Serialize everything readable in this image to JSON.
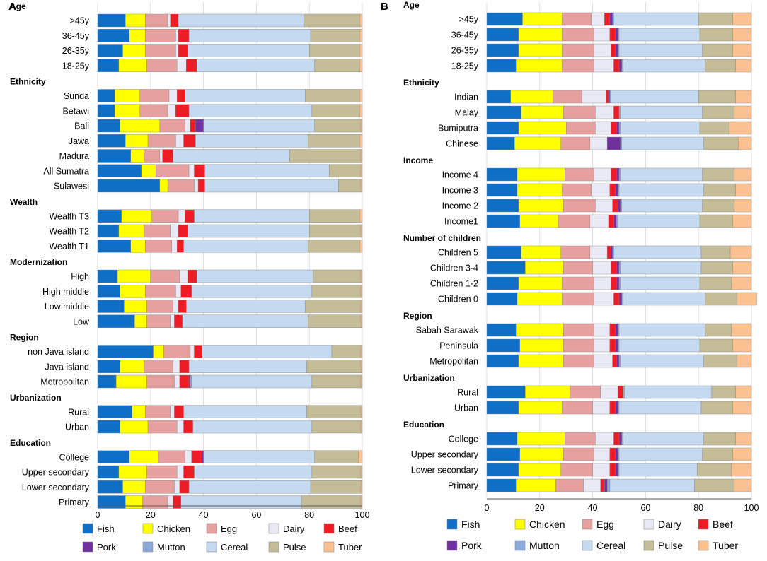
{
  "categories_order": [
    "Fish",
    "Chicken",
    "Egg",
    "Dairy",
    "Beef",
    "Pork",
    "Mutton",
    "Cereal",
    "Pulse",
    "Tuber"
  ],
  "colors": {
    "Fish": "#0f6fc6",
    "Chicken": "#ffff00",
    "Egg": "#e6a0a0",
    "Dairy": "#e9e9f5",
    "Beef": "#ee1c25",
    "Pork": "#7030a0",
    "Mutton": "#8eaadb",
    "Cereal": "#c5d9f1",
    "Pulse": "#c4bd97",
    "Tuber": "#fac090"
  },
  "chart_data": [
    {
      "type": "bar",
      "orientation": "horizontal",
      "stacked": true,
      "panel_label": "A",
      "xlim": [
        0,
        100
      ],
      "xticks": [
        "0",
        "20",
        "40",
        "60",
        "80",
        "100"
      ],
      "series_names": [
        "Fish",
        "Chicken",
        "Egg",
        "Dairy",
        "Beef",
        "Pork",
        "Mutton",
        "Cereal",
        "Pulse",
        "Tuber"
      ],
      "legend_row1": [
        "Fish",
        "Chicken",
        "Egg",
        "Dairy",
        "Beef"
      ],
      "legend_row2": [
        "Pork",
        "Mutton",
        "Cereal",
        "Pulse",
        "Tuber"
      ],
      "groups": [
        {
          "title": "Age",
          "rows": [
            {
              "label": ">45y",
              "values": [
                10.5,
                7.5,
                8.5,
                1,
                3,
                0,
                0,
                47.5,
                21,
                1
              ]
            },
            {
              "label": "36-45y",
              "values": [
                12,
                6,
                11.5,
                1,
                4,
                0,
                0,
                46,
                18.5,
                1
              ]
            },
            {
              "label": "26-35y",
              "values": [
                9.5,
                8.5,
                11.5,
                1,
                3.5,
                0,
                0,
                46,
                19,
                1
              ]
            },
            {
              "label": "18-25y",
              "values": [
                8,
                10.5,
                11.5,
                3.5,
                4,
                0,
                0,
                44.5,
                17,
                1
              ]
            }
          ]
        },
        {
          "title": "Ethnicity",
          "rows": [
            {
              "label": "Sunda",
              "values": [
                6.5,
                9.5,
                11,
                3,
                3,
                0,
                0,
                45.5,
                20.5,
                1
              ]
            },
            {
              "label": "Betawi",
              "values": [
                6.5,
                9.5,
                10.5,
                3,
                5,
                0,
                0,
                46.5,
                18,
                1
              ]
            },
            {
              "label": "Bali",
              "values": [
                8.5,
                15,
                9.5,
                2,
                2,
                3,
                0,
                42,
                17.5,
                0.5
              ]
            },
            {
              "label": "Jawa",
              "values": [
                10.5,
                8.5,
                10.5,
                3,
                4.5,
                0,
                0,
                42.5,
                19.5,
                1
              ]
            },
            {
              "label": "Madura",
              "values": [
                12.5,
                5,
                6,
                1,
                4,
                0,
                0,
                44,
                27,
                0.5
              ]
            },
            {
              "label": "All Sumatra",
              "values": [
                16.5,
                5.5,
                12.5,
                2,
                4,
                0,
                0,
                47,
                12,
                0.5
              ]
            },
            {
              "label": "Sulawesi",
              "values": [
                23.5,
                3,
                10,
                1.5,
                2.5,
                0,
                0,
                50.5,
                8.5,
                0.5
              ]
            }
          ]
        },
        {
          "title": "Wealth",
          "rows": [
            {
              "label": "Wealth T3",
              "values": [
                9,
                11.5,
                10,
                2.5,
                3.5,
                0,
                0,
                43.5,
                19,
                1
              ]
            },
            {
              "label": "Wealth T2",
              "values": [
                8,
                9.5,
                10,
                3,
                3.5,
                0,
                0,
                46,
                19.5,
                0.5
              ]
            },
            {
              "label": "Wealth T1",
              "values": [
                12.5,
                5.5,
                10,
                2,
                2.5,
                0,
                0,
                47,
                19.5,
                1
              ]
            }
          ]
        },
        {
          "title": "Modernization",
          "rows": [
            {
              "label": "High",
              "values": [
                7.5,
                12.5,
                11,
                3,
                3.5,
                0,
                0,
                44,
                18,
                0.5
              ]
            },
            {
              "label": "High middle",
              "values": [
                8.5,
                9.5,
                11.5,
                2,
                4,
                0,
                0,
                45.5,
                18.5,
                0.5
              ]
            },
            {
              "label": "Low middle",
              "values": [
                10,
                8.5,
                10,
                2,
                3,
                0,
                0,
                45,
                21,
                0.5
              ]
            },
            {
              "label": "Low",
              "values": [
                14,
                4.5,
                9,
                1.5,
                3,
                0,
                0,
                47.5,
                20,
                0.5
              ]
            }
          ]
        },
        {
          "title": "Region",
          "rows": [
            {
              "label": "non Java island",
              "values": [
                21,
                4,
                10,
                1.5,
                3,
                0,
                0,
                49,
                11,
                0.5
              ]
            },
            {
              "label": "Java island",
              "values": [
                8.5,
                9,
                11,
                2.5,
                3.5,
                0,
                0,
                44.5,
                20.5,
                0.5
              ]
            },
            {
              "label": "Metropolitan",
              "values": [
                7,
                11.5,
                10.5,
                2,
                3.5,
                0.5,
                0.5,
                45.5,
                18.5,
                0.5
              ]
            }
          ]
        },
        {
          "title": "Urbanization",
          "rows": [
            {
              "label": "Rural",
              "values": [
                13,
                5,
                9.5,
                1.5,
                3.5,
                0,
                0,
                46.5,
                20.5,
                0.5
              ]
            },
            {
              "label": "Urban",
              "values": [
                8.5,
                10.5,
                11,
                2.5,
                3.5,
                0,
                0,
                45,
                18.5,
                0.5
              ]
            }
          ]
        },
        {
          "title": "Education",
          "rows": [
            {
              "label": "College",
              "values": [
                12,
                11,
                10,
                2.5,
                4,
                0.5,
                0,
                42,
                16.5,
                1.5
              ]
            },
            {
              "label": "Upper secondary",
              "values": [
                8,
                10.5,
                11.5,
                2.5,
                4,
                0,
                0,
                44.5,
                18.5,
                0.5
              ]
            },
            {
              "label": "Lower secondary",
              "values": [
                9.5,
                8.5,
                11,
                2,
                3.5,
                0,
                0,
                46,
                19,
                0.5
              ]
            },
            {
              "label": "Primary",
              "values": [
                10.5,
                6.5,
                9.5,
                2,
                3,
                0,
                0,
                45.5,
                22.5,
                0.5
              ]
            }
          ]
        }
      ]
    },
    {
      "type": "bar",
      "orientation": "horizontal",
      "stacked": true,
      "panel_label": "B",
      "xlim": [
        0,
        100
      ],
      "xticks": [
        "0",
        "20",
        "40",
        "60",
        "80",
        "100"
      ],
      "series_names": [
        "Fish",
        "Chicken",
        "Egg",
        "Dairy",
        "Beef",
        "Pork",
        "Mutton",
        "Cereal",
        "Pulse",
        "Tuber"
      ],
      "legend_row1": [
        "Fish",
        "Chicken",
        "Egg",
        "Dairy",
        "Beef"
      ],
      "legend_row2": [
        "Pork",
        "Mutton",
        "Cereal",
        "Pulse",
        "Tuber"
      ],
      "groups": [
        {
          "title": "Age",
          "rows": [
            {
              "label": ">45y",
              "values": [
                13.5,
                15,
                11,
                5,
                2,
                1,
                0.5,
                32,
                13,
                7
              ]
            },
            {
              "label": "36-45y",
              "values": [
                12,
                16.5,
                12,
                6,
                2,
                1,
                0.5,
                30.5,
                12.5,
                7
              ]
            },
            {
              "label": "26-35y",
              "values": [
                12,
                16.5,
                12,
                6.5,
                1.5,
                1,
                0.5,
                31.5,
                11.5,
                7
              ]
            },
            {
              "label": "18-25y",
              "values": [
                11,
                17.5,
                12,
                7.5,
                2,
                1,
                0.5,
                31,
                11.5,
                6
              ]
            }
          ]
        },
        {
          "title": "Ethnicity",
          "rows": [
            {
              "label": "Indian",
              "values": [
                9,
                16,
                11,
                9,
                1,
                0.5,
                0.5,
                33,
                14,
                6
              ]
            },
            {
              "label": "Malay",
              "values": [
                13,
                16,
                12,
                7,
                2,
                0,
                0.5,
                31,
                12,
                6.5
              ]
            },
            {
              "label": "Bumiputra",
              "values": [
                12,
                18,
                11,
                6,
                2,
                1,
                0.5,
                30,
                11,
                8.5
              ]
            },
            {
              "label": "Chinese",
              "values": [
                10.5,
                17.5,
                11,
                6.5,
                0,
                5,
                0.5,
                31,
                13,
                5
              ]
            }
          ]
        },
        {
          "title": "Income",
          "rows": [
            {
              "label": "Income 4",
              "values": [
                11.5,
                18,
                11,
                6.5,
                2,
                1,
                0.5,
                31,
                12,
                6.5
              ]
            },
            {
              "label": "Income 3",
              "values": [
                11.5,
                17,
                11,
                7,
                2,
                1,
                0.5,
                32,
                12,
                6
              ]
            },
            {
              "label": "Income 2",
              "values": [
                12,
                17,
                12,
                6.5,
                2,
                1,
                0.5,
                30.5,
                12,
                6.5
              ]
            },
            {
              "label": "Income1",
              "values": [
                12.5,
                14.5,
                12,
                7,
                2,
                1,
                0.5,
                31,
                12.5,
                7
              ]
            }
          ]
        },
        {
          "title": "Number of children",
          "rows": [
            {
              "label": "Children 5",
              "values": [
                13,
                15,
                11,
                6.5,
                1.5,
                0.5,
                0.5,
                33,
                11,
                8
              ]
            },
            {
              "label": "Children 3-4",
              "values": [
                14.5,
                14.5,
                11,
                7,
                2,
                1,
                0.5,
                30.5,
                12,
                7
              ]
            },
            {
              "label": "Children 1-2",
              "values": [
                12,
                16.5,
                12,
                6.5,
                2,
                1,
                0.5,
                30,
                12,
                7.5
              ]
            },
            {
              "label": "Children 0",
              "values": [
                11.5,
                17,
                12,
                7.5,
                2,
                1,
                0.5,
                31,
                12,
                7.5
              ]
            }
          ]
        },
        {
          "title": "Region",
          "rows": [
            {
              "label": "Sabah Sarawak",
              "values": [
                11,
                18,
                11.5,
                6,
                2,
                1,
                0.5,
                32.5,
                10,
                7.5
              ]
            },
            {
              "label": "Peninsula",
              "values": [
                12.5,
                16.5,
                11.5,
                6,
                2,
                1,
                0.5,
                30.5,
                12.5,
                7
              ]
            },
            {
              "label": "Metropolitan",
              "values": [
                12,
                17,
                11.5,
                7,
                1.5,
                1,
                0.5,
                31.5,
                12.5,
                5.5
              ]
            }
          ]
        },
        {
          "title": "Urbanization",
          "rows": [
            {
              "label": "Rural",
              "values": [
                14.5,
                17,
                11.5,
                6.5,
                2,
                0,
                0.5,
                33,
                9,
                6
              ]
            },
            {
              "label": "Urban",
              "values": [
                12,
                16.5,
                11.5,
                6.5,
                2,
                1,
                0.5,
                31,
                12,
                7
              ]
            }
          ]
        },
        {
          "title": "Education",
          "rows": [
            {
              "label": "College",
              "values": [
                11.5,
                18,
                11.5,
                7,
                2,
                1,
                0.5,
                30.5,
                12,
                6
              ]
            },
            {
              "label": "Upper secondary",
              "values": [
                12.5,
                16.5,
                11.5,
                6,
                2,
                1,
                0.5,
                31.5,
                11.5,
                7
              ]
            },
            {
              "label": "Lower secondary",
              "values": [
                12,
                16,
                12,
                6.5,
                2,
                1,
                0.5,
                29.5,
                13,
                7.5
              ]
            },
            {
              "label": "Primary",
              "values": [
                11,
                15,
                10.5,
                6.5,
                1.5,
                1,
                1,
                32,
                15,
                6.5
              ]
            }
          ]
        }
      ]
    }
  ]
}
